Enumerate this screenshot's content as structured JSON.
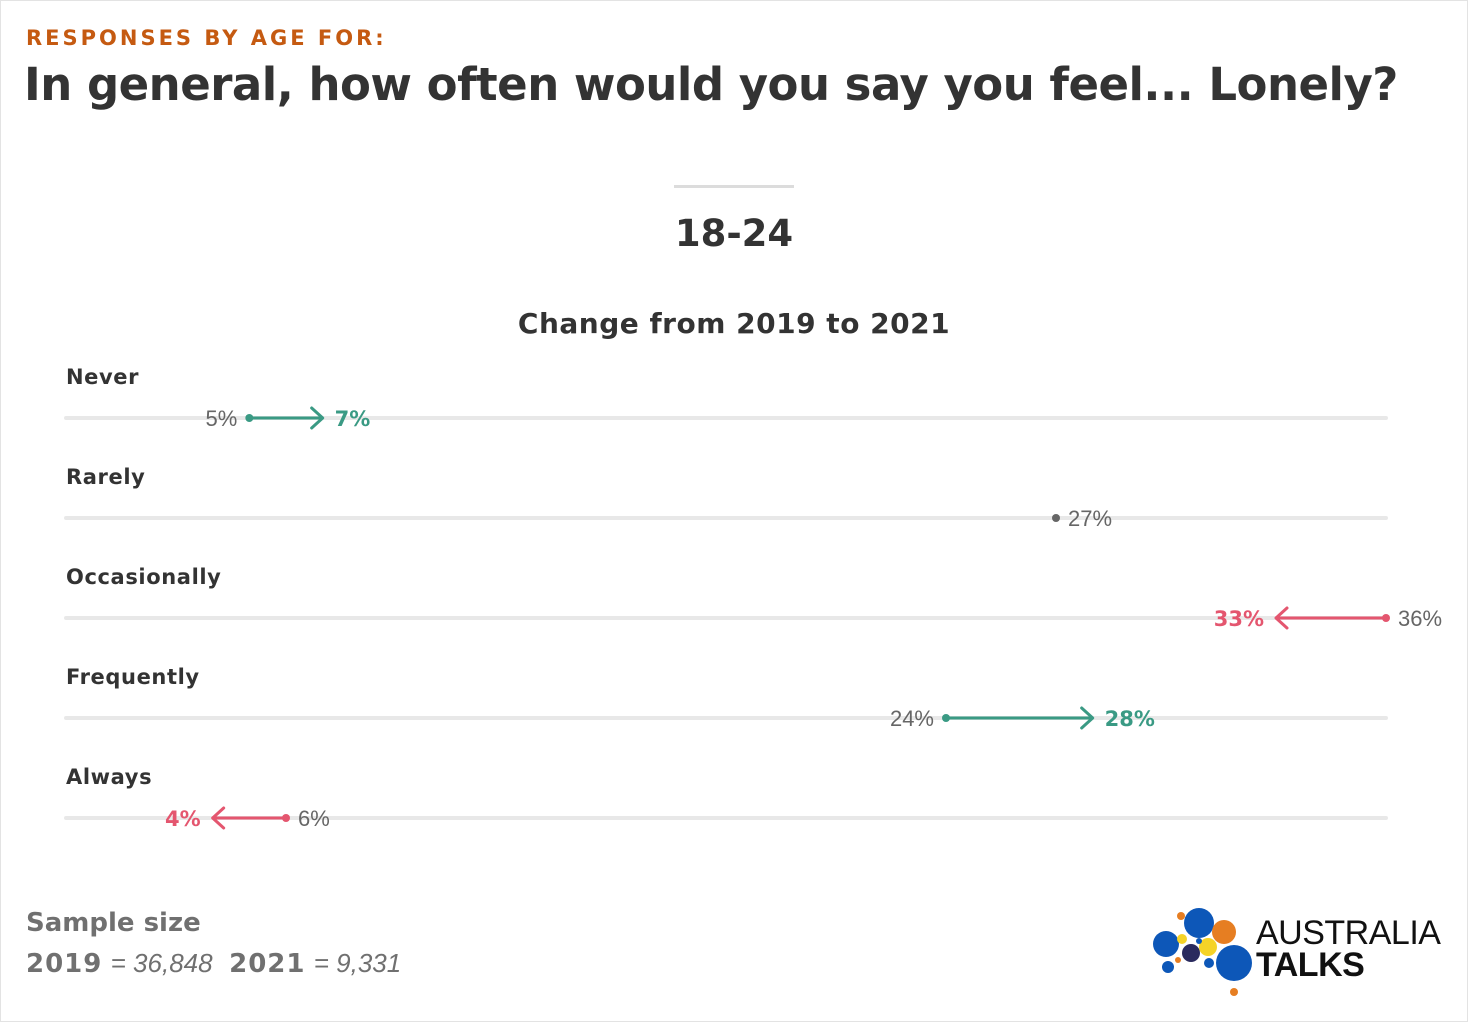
{
  "header": {
    "kicker": "RESPONSES BY AGE FOR:",
    "headline": "In general, how often would you say you feel... Lonely?"
  },
  "group": {
    "title": "18-24"
  },
  "chart_data": {
    "type": "dumbbell",
    "title": "Change from 2019 to 2021",
    "xlim": [
      0,
      36
    ],
    "grid": false,
    "series": [
      {
        "name": "2019"
      },
      {
        "name": "2021"
      }
    ],
    "categories": [
      "Never",
      "Rarely",
      "Occasionally",
      "Frequently",
      "Always"
    ],
    "rows": [
      {
        "category": "Never",
        "y2019": 5,
        "y2021": 7,
        "label2019": "5%",
        "label2021": "7%"
      },
      {
        "category": "Rarely",
        "y2019": 27,
        "y2021": 27,
        "label2019": "27%",
        "label2021": ""
      },
      {
        "category": "Occasionally",
        "y2019": 36,
        "y2021": 33,
        "label2019": "36%",
        "label2021": "33%"
      },
      {
        "category": "Frequently",
        "y2019": 24,
        "y2021": 28,
        "label2019": "24%",
        "label2021": "28%"
      },
      {
        "category": "Always",
        "y2019": 6,
        "y2021": 4,
        "label2019": "6%",
        "label2021": "4%"
      }
    ],
    "colors": {
      "increase": "#3a9a84",
      "decrease": "#e4566f",
      "neutral": "#666666",
      "track": "#e8e8e8"
    }
  },
  "footer": {
    "sample_title": "Sample size",
    "year1": "2019",
    "value1": "= 36,848",
    "year2": "2021",
    "value2": "= 9,331"
  },
  "logo": {
    "line1": "AUSTRALIA",
    "line2": "TALKS",
    "colors": [
      "#0d57b8",
      "#e67e22",
      "#f5d327",
      "#2a2a5e"
    ]
  },
  "colors": {
    "kicker": "#c55a11",
    "headline": "#333333"
  }
}
